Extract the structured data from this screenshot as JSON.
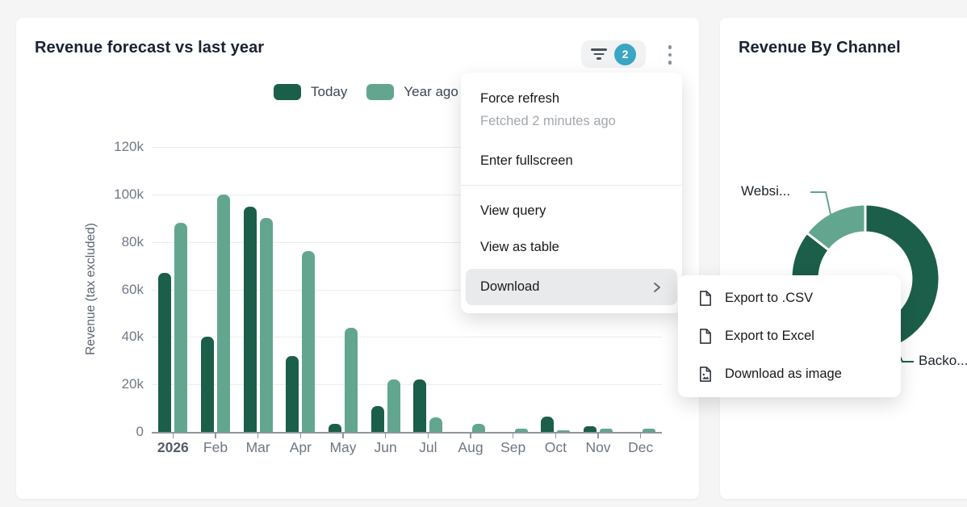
{
  "left_card": {
    "title": "Revenue forecast vs last year",
    "filter_badge_count": "2",
    "legend": {
      "today": "Today",
      "year_ago": "Year ago"
    }
  },
  "menu": {
    "force_refresh": "Force refresh",
    "fetched_status": "Fetched 2 minutes ago",
    "enter_fullscreen": "Enter fullscreen",
    "view_query": "View query",
    "view_as_table": "View as table",
    "download": "Download"
  },
  "download_submenu": {
    "export_csv": "Export to .CSV",
    "export_excel": "Export to Excel",
    "download_image": "Download as image"
  },
  "right_card": {
    "title": "Revenue By Channel",
    "website_label": "Websi...",
    "backoffice_label": "Backo..."
  },
  "colors": {
    "dark_green": "#1b5e4a",
    "light_green": "#63a690",
    "badge_teal": "#3aa6c4"
  },
  "chart_data": [
    {
      "type": "bar",
      "title": "Revenue forecast vs last year",
      "xlabel": "",
      "ylabel": "Revenue (tax excluded)",
      "categories": [
        "2026",
        "Feb",
        "Mar",
        "Apr",
        "May",
        "Jun",
        "Jul",
        "Aug",
        "Sep",
        "Oct",
        "Nov",
        "Dec"
      ],
      "series": [
        {
          "name": "Today",
          "color": "#1b5e4a",
          "values": [
            67000,
            40000,
            95000,
            32000,
            3500,
            11000,
            22000,
            0,
            0,
            6500,
            2400,
            0
          ]
        },
        {
          "name": "Year ago",
          "color": "#63a690",
          "values": [
            88000,
            100000,
            90000,
            76000,
            44000,
            22000,
            6000,
            3400,
            1500,
            700,
            1400,
            1300
          ]
        }
      ],
      "ylim": [
        0,
        120000
      ],
      "ytick_labels": [
        "0",
        "20k",
        "40k",
        "60k",
        "80k",
        "100k",
        "120k"
      ],
      "grid": true,
      "legend_position": "top"
    },
    {
      "type": "pie",
      "title": "Revenue By Channel",
      "donut": true,
      "slices": [
        {
          "label": "Backo...",
          "color": "#1b5e4a",
          "sweep_deg": 258
        },
        {
          "label": "",
          "color": "#1b5e4a",
          "sweep_deg": 50
        },
        {
          "label": "Websi...",
          "color": "#63a690",
          "sweep_deg": 52
        }
      ],
      "legend_position": "none"
    }
  ]
}
